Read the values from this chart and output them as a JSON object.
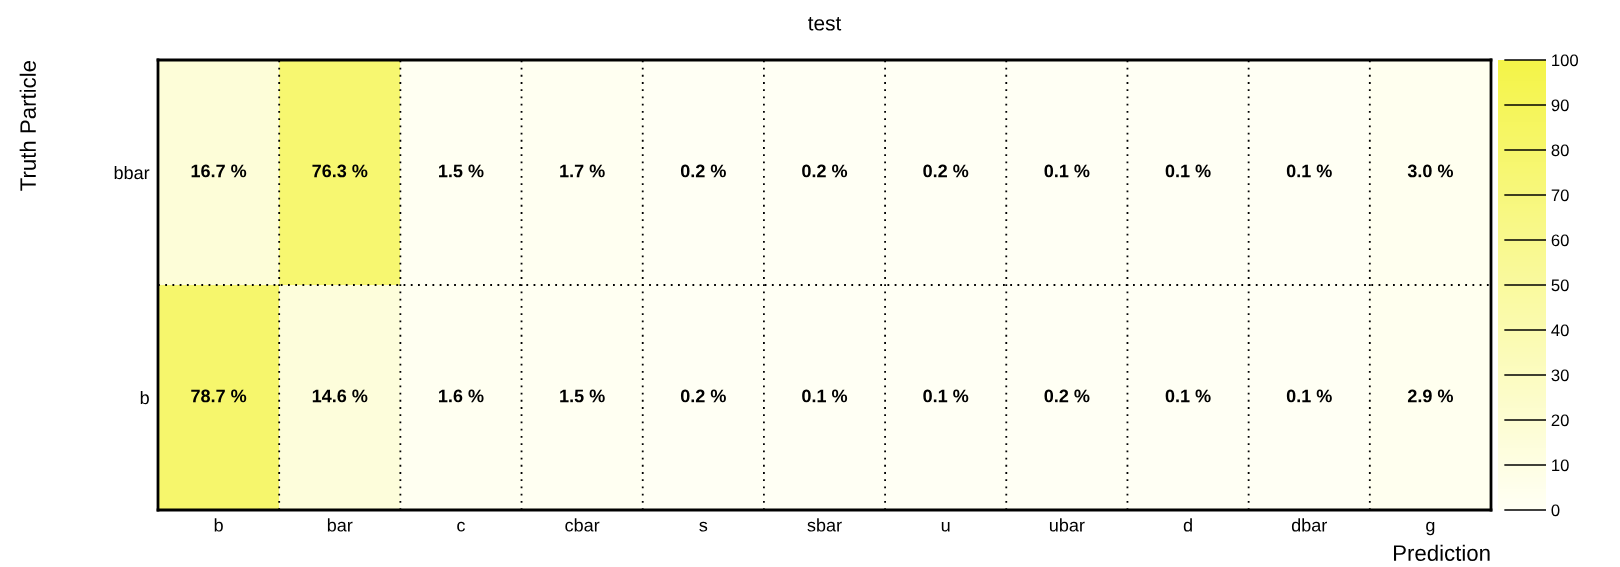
{
  "chart_data": {
    "type": "heatmap",
    "title": "test",
    "xlabel": "Prediction",
    "ylabel": "Truth Particle",
    "categories": [
      "b",
      "bar",
      "c",
      "cbar",
      "s",
      "sbar",
      "u",
      "ubar",
      "d",
      "dbar",
      "g"
    ],
    "y_categories": [
      "bbar",
      "b"
    ],
    "cells": [
      [
        16.7,
        76.3,
        1.5,
        1.7,
        0.2,
        0.2,
        0.2,
        0.1,
        0.1,
        0.1,
        3.0
      ],
      [
        78.7,
        14.6,
        1.6,
        1.5,
        0.2,
        0.1,
        0.1,
        0.2,
        0.1,
        0.1,
        2.9
      ]
    ],
    "cell_labels": [
      [
        "16.7 %",
        "76.3 %",
        "1.5 %",
        "1.7 %",
        "0.2 %",
        "0.2 %",
        "0.2 %",
        "0.1 %",
        "0.1 %",
        "0.1 %",
        "3.0 %"
      ],
      [
        "78.7 %",
        "14.6 %",
        "1.6 %",
        "1.5 %",
        "0.2 %",
        "0.1 %",
        "0.1 %",
        "0.2 %",
        "0.1 %",
        "0.1 %",
        "2.9 %"
      ]
    ],
    "clim": [
      0,
      100
    ],
    "cticks": [
      0,
      10,
      20,
      30,
      40,
      50,
      60,
      70,
      80,
      90,
      100
    ],
    "grid": true
  }
}
